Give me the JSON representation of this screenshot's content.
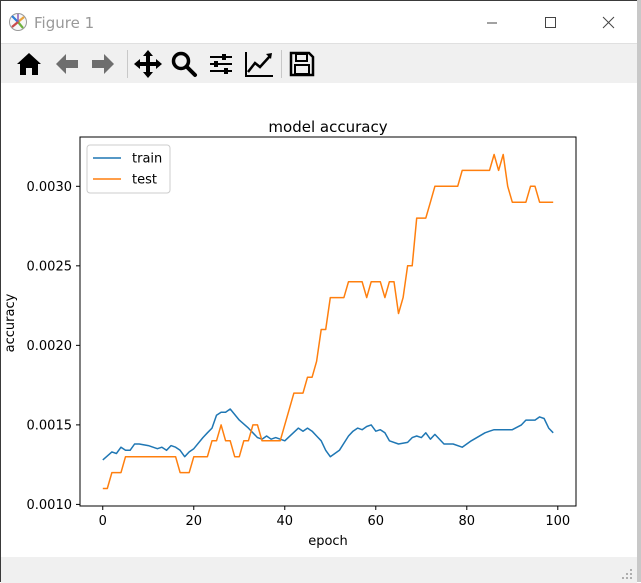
{
  "window": {
    "title": "Figure 1"
  },
  "toolbar": {
    "buttons": [
      {
        "name": "home-button",
        "icon": "home-icon"
      },
      {
        "name": "back-button",
        "icon": "arrow-left-icon"
      },
      {
        "name": "forward-button",
        "icon": "arrow-right-icon"
      },
      {
        "name": "pan-button",
        "icon": "move-icon"
      },
      {
        "name": "zoom-button",
        "icon": "magnifier-icon"
      },
      {
        "name": "subplots-button",
        "icon": "sliders-icon"
      },
      {
        "name": "edit-axes-button",
        "icon": "line-chart-icon"
      },
      {
        "name": "save-button",
        "icon": "floppy-disk-icon"
      }
    ]
  },
  "chart_data": {
    "type": "line",
    "title": "model accuracy",
    "xlabel": "epoch",
    "ylabel": "accuracy",
    "xlim": [
      -5,
      104
    ],
    "ylim": [
      0.00099,
      0.00331
    ],
    "xticks": [
      0,
      20,
      40,
      60,
      80,
      100
    ],
    "xtick_labels": [
      "0",
      "20",
      "40",
      "60",
      "80",
      "100"
    ],
    "yticks": [
      0.001,
      0.0015,
      0.002,
      0.0025,
      0.003
    ],
    "ytick_labels": [
      "0.0010",
      "0.0015",
      "0.0020",
      "0.0025",
      "0.0030"
    ],
    "legend_position": "upper-left",
    "grid": false,
    "series": [
      {
        "name": "train",
        "color": "#1f77b4",
        "x": [
          0,
          2,
          3,
          4,
          5,
          6,
          7,
          8,
          10,
          12,
          13,
          14,
          15,
          16,
          17,
          18,
          19,
          20,
          22,
          23,
          24,
          25,
          26,
          27,
          28,
          30,
          32,
          34,
          35,
          36,
          37,
          38,
          40,
          43,
          44,
          45,
          46,
          47,
          48,
          49,
          50,
          52,
          54,
          55,
          56,
          57,
          58,
          59,
          60,
          61,
          62,
          63,
          65,
          67,
          68,
          69,
          70,
          71,
          72,
          73,
          75,
          76,
          77,
          79,
          81,
          84,
          85,
          86,
          87,
          88,
          89,
          90,
          92,
          93,
          94,
          95,
          96,
          97,
          98,
          99
        ],
        "y": [
          0.00128,
          0.00133,
          0.00132,
          0.00136,
          0.00134,
          0.00134,
          0.00138,
          0.00138,
          0.00137,
          0.00135,
          0.00136,
          0.00134,
          0.00137,
          0.00136,
          0.00134,
          0.0013,
          0.00133,
          0.00135,
          0.00142,
          0.00145,
          0.00148,
          0.00156,
          0.00158,
          0.00158,
          0.0016,
          0.00153,
          0.00148,
          0.00142,
          0.00141,
          0.00143,
          0.00141,
          0.00142,
          0.0014,
          0.00148,
          0.00146,
          0.00148,
          0.00146,
          0.00143,
          0.0014,
          0.00134,
          0.0013,
          0.00134,
          0.00143,
          0.00146,
          0.00148,
          0.00147,
          0.00149,
          0.0015,
          0.00146,
          0.00147,
          0.00145,
          0.0014,
          0.00138,
          0.00139,
          0.00142,
          0.00143,
          0.00142,
          0.00145,
          0.00141,
          0.00144,
          0.00138,
          0.00138,
          0.00138,
          0.00136,
          0.0014,
          0.00145,
          0.00146,
          0.00147,
          0.00147,
          0.00147,
          0.00147,
          0.00147,
          0.0015,
          0.00153,
          0.00153,
          0.00153,
          0.00155,
          0.00154,
          0.00148,
          0.00145
        ]
      },
      {
        "name": "test",
        "color": "#ff7f0e",
        "x": [
          0,
          1,
          2,
          4,
          5,
          16,
          17,
          19,
          20,
          23,
          24,
          25,
          26,
          27,
          28,
          29,
          30,
          31,
          32,
          33,
          34,
          35,
          36,
          39,
          42,
          43,
          44,
          45,
          46,
          47,
          48,
          49,
          50,
          53,
          54,
          57,
          58,
          59,
          60,
          61,
          62,
          63,
          64,
          65,
          66,
          67,
          68,
          69,
          70,
          71,
          72,
          73,
          74,
          75,
          76,
          77,
          78,
          79,
          80,
          82,
          85,
          86,
          87,
          88,
          89,
          90,
          93,
          94,
          95,
          96,
          97,
          98,
          99
        ],
        "y": [
          0.0011,
          0.0011,
          0.0012,
          0.0012,
          0.0013,
          0.0013,
          0.0012,
          0.0012,
          0.0013,
          0.0013,
          0.0014,
          0.0014,
          0.0015,
          0.0014,
          0.0014,
          0.0013,
          0.0013,
          0.0014,
          0.0014,
          0.0015,
          0.0015,
          0.0014,
          0.0014,
          0.0014,
          0.0017,
          0.0017,
          0.0017,
          0.0018,
          0.0018,
          0.0019,
          0.0021,
          0.0021,
          0.0023,
          0.0023,
          0.0024,
          0.0024,
          0.0023,
          0.0024,
          0.0024,
          0.0024,
          0.0023,
          0.0024,
          0.0024,
          0.0022,
          0.0023,
          0.0025,
          0.0025,
          0.0028,
          0.0028,
          0.0028,
          0.0029,
          0.003,
          0.003,
          0.003,
          0.003,
          0.003,
          0.003,
          0.0031,
          0.0031,
          0.0031,
          0.0031,
          0.0032,
          0.0031,
          0.0032,
          0.003,
          0.0029,
          0.0029,
          0.003,
          0.003,
          0.0029,
          0.0029,
          0.0029,
          0.0029
        ]
      }
    ]
  }
}
